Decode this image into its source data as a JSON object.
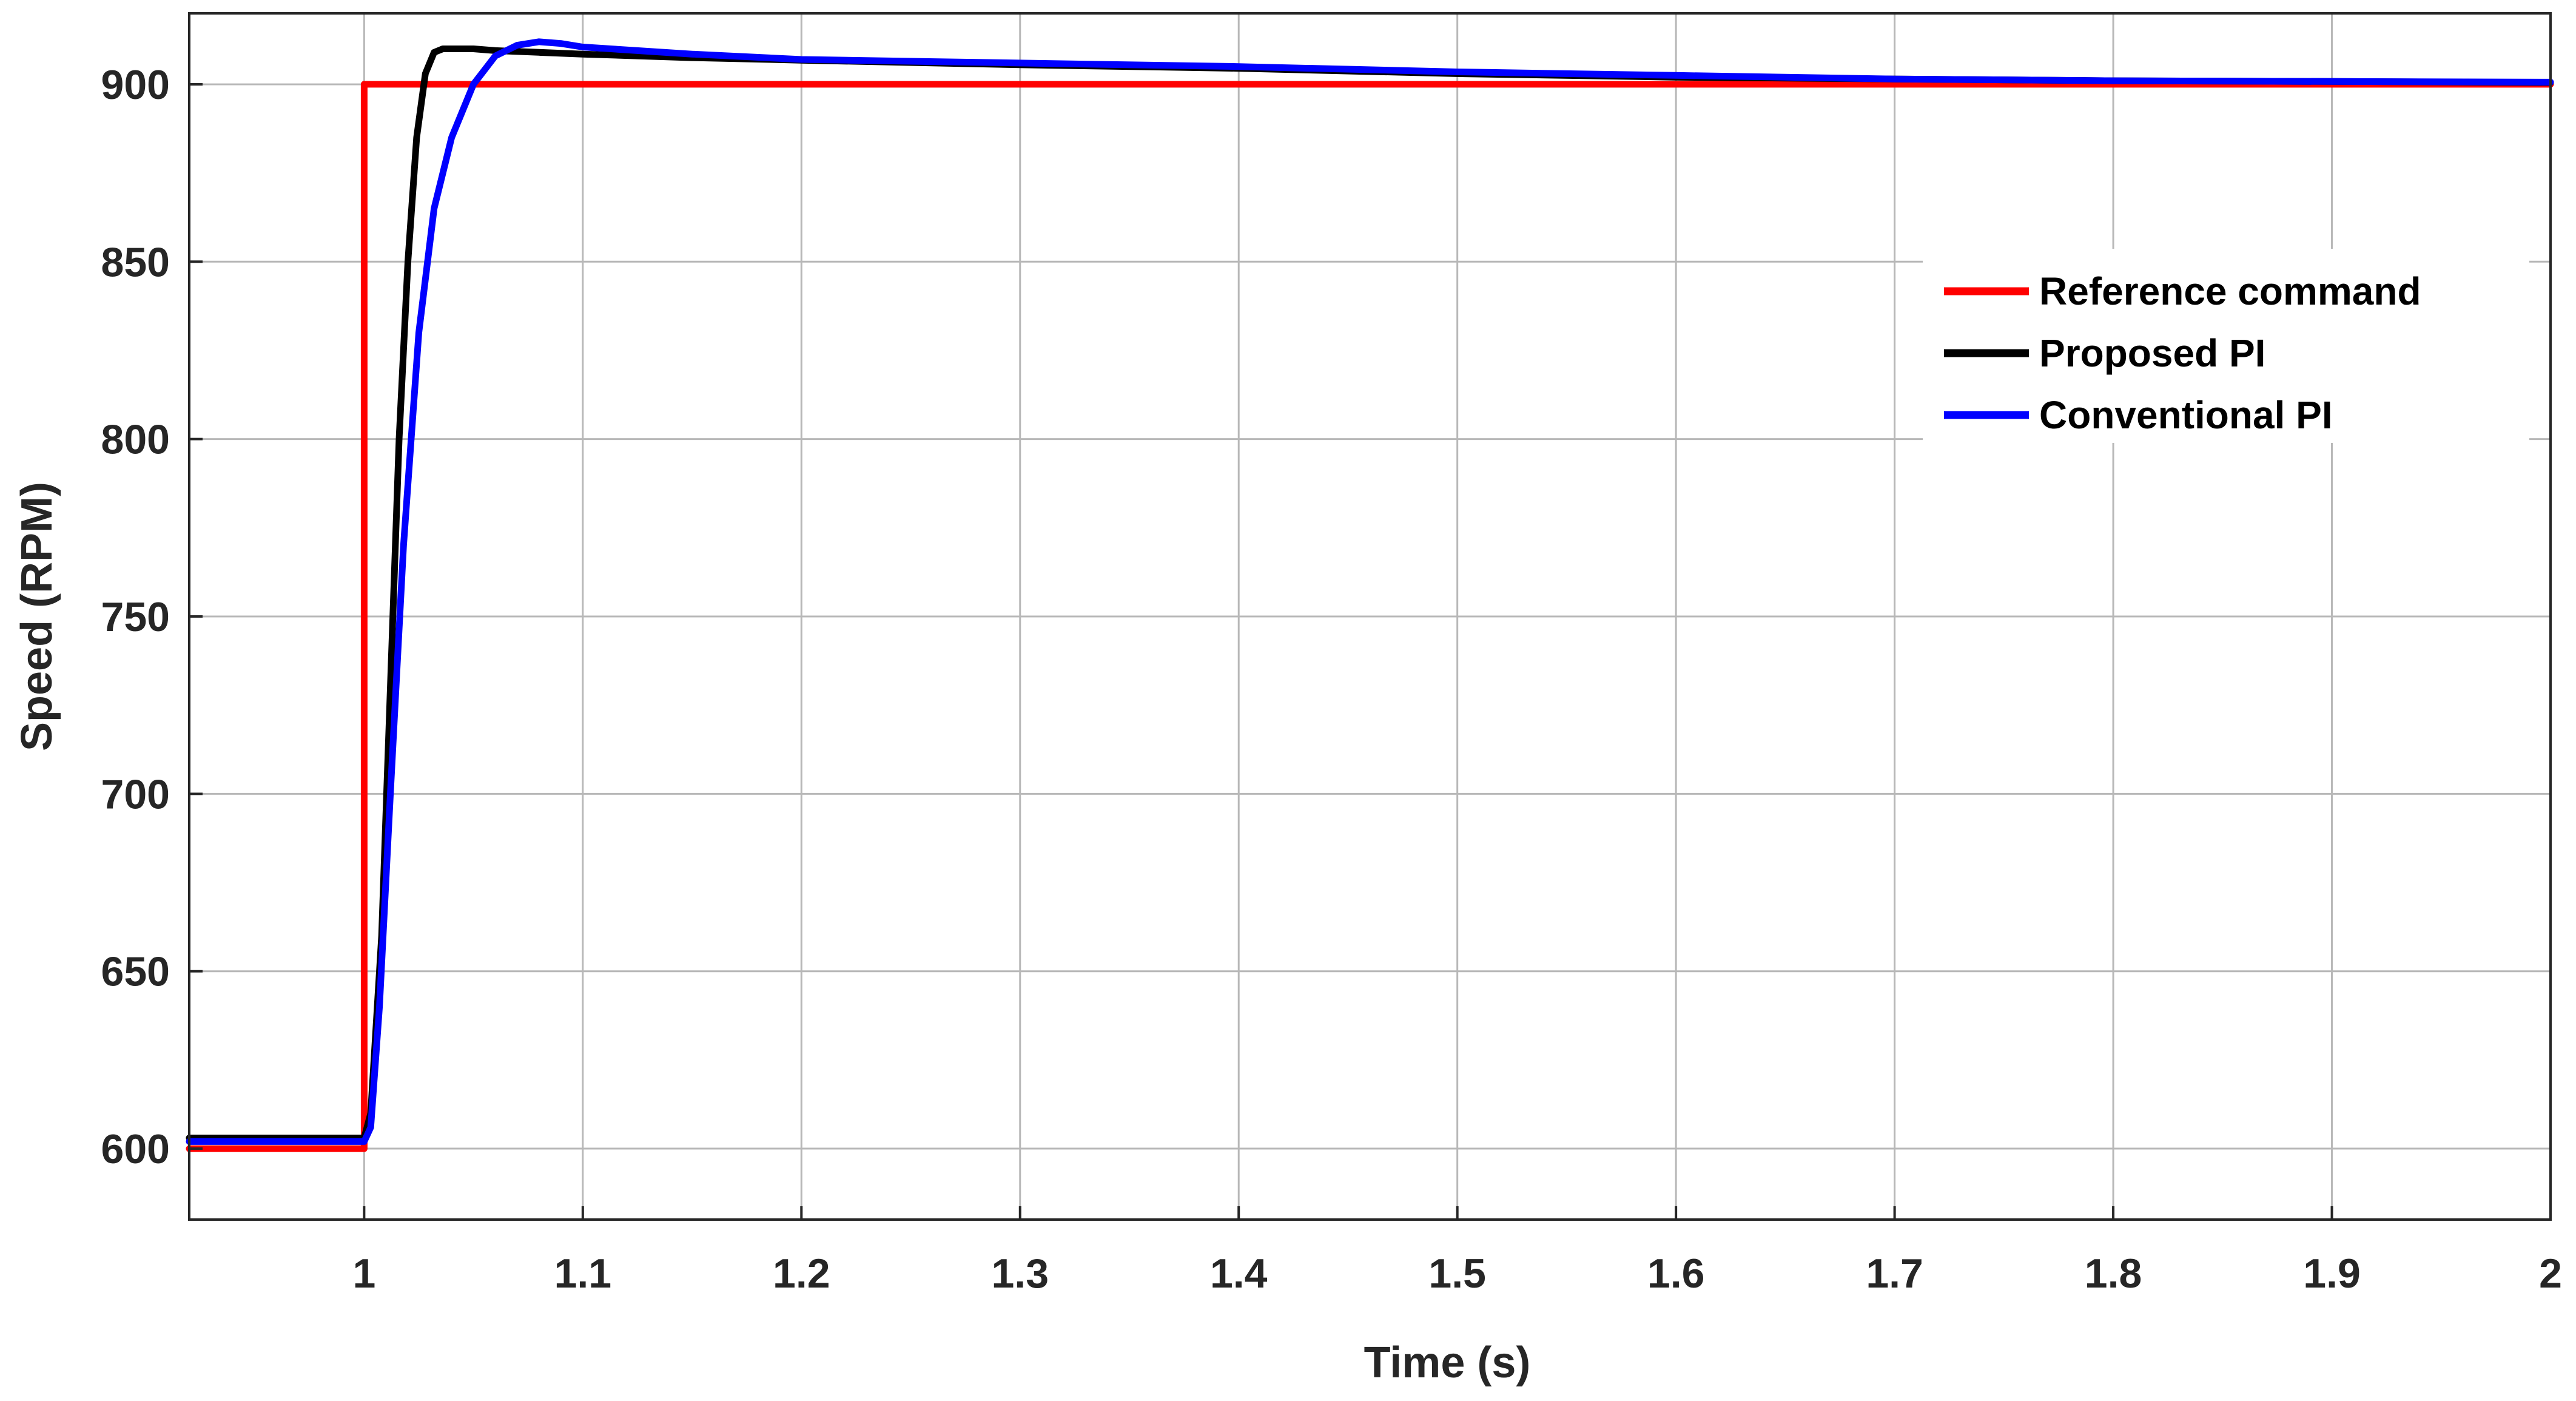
{
  "chart_data": {
    "type": "line",
    "title": "",
    "xlabel": "Time (s)",
    "ylabel": "Speed (RPM)",
    "xlim": [
      0.92,
      2.0
    ],
    "ylim": [
      580,
      920
    ],
    "grid": true,
    "legend_position": "top-right",
    "x_ticks": [
      1,
      1.1,
      1.2,
      1.3,
      1.4,
      1.5,
      1.6,
      1.7,
      1.8,
      1.9,
      2
    ],
    "x_tick_labels": [
      "1",
      "1.1",
      "1.2",
      "1.3",
      "1.4",
      "1.5",
      "1.6",
      "1.7",
      "1.8",
      "1.9",
      "2"
    ],
    "y_ticks": [
      600,
      650,
      700,
      750,
      800,
      850,
      900
    ],
    "y_tick_labels": [
      "600",
      "650",
      "700",
      "750",
      "800",
      "850",
      "900"
    ],
    "series": [
      {
        "name": "Reference command",
        "color": "#ff0000",
        "x": [
          0.92,
          1.0,
          1.0,
          2.0
        ],
        "y": [
          600,
          600,
          900,
          900
        ]
      },
      {
        "name": "Proposed PI",
        "color": "#000000",
        "x": [
          0.92,
          1.0,
          1.003,
          1.008,
          1.012,
          1.016,
          1.02,
          1.024,
          1.028,
          1.032,
          1.036,
          1.04,
          1.05,
          1.06,
          1.08,
          1.1,
          1.15,
          1.2,
          1.3,
          1.4,
          1.5,
          1.6,
          1.7,
          1.8,
          1.9,
          2.0
        ],
        "y": [
          603,
          603,
          610,
          660,
          730,
          800,
          850,
          885,
          903,
          909,
          910,
          910,
          910,
          909.5,
          909,
          908.5,
          907.5,
          906.8,
          905.5,
          904.5,
          903,
          902,
          901.5,
          901,
          900.8,
          900.5
        ]
      },
      {
        "name": "Conventional PI",
        "color": "#0000ff",
        "x": [
          0.92,
          1.0,
          1.003,
          1.007,
          1.012,
          1.018,
          1.025,
          1.032,
          1.04,
          1.05,
          1.06,
          1.07,
          1.08,
          1.09,
          1.1,
          1.15,
          1.2,
          1.3,
          1.4,
          1.5,
          1.6,
          1.7,
          1.8,
          1.9,
          2.0
        ],
        "y": [
          602,
          602,
          606,
          640,
          700,
          770,
          830,
          865,
          885,
          900,
          908,
          911,
          912,
          911.5,
          910.5,
          908.5,
          907,
          906,
          905,
          903.5,
          902.5,
          901.5,
          901,
          900.8,
          900.6
        ]
      }
    ]
  }
}
